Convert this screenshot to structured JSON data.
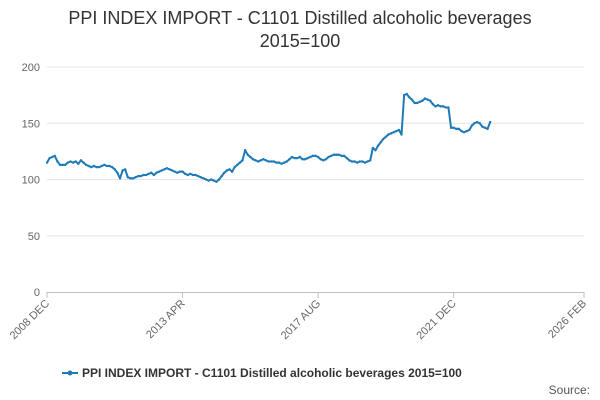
{
  "chart_data": {
    "type": "line",
    "title": "PPI INDEX IMPORT - C1101 Distilled alcoholic beverages",
    "subtitle": "2015=100",
    "ylim": [
      0,
      200
    ],
    "y_ticks": [
      "0",
      "50",
      "100",
      "150",
      "200"
    ],
    "x_tick_labels": [
      "2008 DEC",
      "2013 APR",
      "2017 AUG",
      "2021 DEC",
      "2026 FEB"
    ],
    "grid": true,
    "legend_position": "bottom",
    "series": [
      {
        "name": "PPI INDEX IMPORT - C1101 Distilled alcoholic beverages 2015=100",
        "color": "#1f7ab8",
        "points": [
          [
            "2008-12",
            115
          ],
          [
            "2009-01",
            119
          ],
          [
            "2009-02",
            120
          ],
          [
            "2009-03",
            121
          ],
          [
            "2009-04",
            116
          ],
          [
            "2009-05",
            113
          ],
          [
            "2009-06",
            113
          ],
          [
            "2009-07",
            113
          ],
          [
            "2009-08",
            115
          ],
          [
            "2009-09",
            116
          ],
          [
            "2009-10",
            115
          ],
          [
            "2009-11",
            116
          ],
          [
            "2009-12",
            114
          ],
          [
            "2010-01",
            117
          ],
          [
            "2010-02",
            115
          ],
          [
            "2010-03",
            113
          ],
          [
            "2010-04",
            112
          ],
          [
            "2010-05",
            111
          ],
          [
            "2010-06",
            112
          ],
          [
            "2010-07",
            111
          ],
          [
            "2010-08",
            111
          ],
          [
            "2010-09",
            112
          ],
          [
            "2010-10",
            113
          ],
          [
            "2010-11",
            112
          ],
          [
            "2010-12",
            112
          ],
          [
            "2011-01",
            111
          ],
          [
            "2011-02",
            109
          ],
          [
            "2011-03",
            106
          ],
          [
            "2011-04",
            101
          ],
          [
            "2011-05",
            108
          ],
          [
            "2011-06",
            109
          ],
          [
            "2011-07",
            102
          ],
          [
            "2011-08",
            101
          ],
          [
            "2011-09",
            101
          ],
          [
            "2011-10",
            102
          ],
          [
            "2011-11",
            103
          ],
          [
            "2011-12",
            103
          ],
          [
            "2012-01",
            104
          ],
          [
            "2012-02",
            104
          ],
          [
            "2012-03",
            105
          ],
          [
            "2012-04",
            106
          ],
          [
            "2012-05",
            104
          ],
          [
            "2012-06",
            106
          ],
          [
            "2012-07",
            107
          ],
          [
            "2012-08",
            108
          ],
          [
            "2012-09",
            109
          ],
          [
            "2012-10",
            110
          ],
          [
            "2012-11",
            109
          ],
          [
            "2012-12",
            108
          ],
          [
            "2013-01",
            107
          ],
          [
            "2013-02",
            106
          ],
          [
            "2013-03",
            107
          ],
          [
            "2013-04",
            107
          ],
          [
            "2013-05",
            105
          ],
          [
            "2013-06",
            104
          ],
          [
            "2013-07",
            105
          ],
          [
            "2013-08",
            104
          ],
          [
            "2013-09",
            104
          ],
          [
            "2013-10",
            103
          ],
          [
            "2013-11",
            102
          ],
          [
            "2013-12",
            101
          ],
          [
            "2014-01",
            100
          ],
          [
            "2014-02",
            99
          ],
          [
            "2014-03",
            100
          ],
          [
            "2014-04",
            99
          ],
          [
            "2014-05",
            98
          ],
          [
            "2014-06",
            100
          ],
          [
            "2014-07",
            103
          ],
          [
            "2014-08",
            106
          ],
          [
            "2014-09",
            108
          ],
          [
            "2014-10",
            109
          ],
          [
            "2014-11",
            107
          ],
          [
            "2014-12",
            111
          ],
          [
            "2015-01",
            113
          ],
          [
            "2015-02",
            115
          ],
          [
            "2015-03",
            117
          ],
          [
            "2015-04",
            126
          ],
          [
            "2015-05",
            122
          ],
          [
            "2015-06",
            120
          ],
          [
            "2015-07",
            118
          ],
          [
            "2015-08",
            117
          ],
          [
            "2015-09",
            116
          ],
          [
            "2015-10",
            117
          ],
          [
            "2015-11",
            118
          ],
          [
            "2015-12",
            117
          ],
          [
            "2016-01",
            116
          ],
          [
            "2016-02",
            116
          ],
          [
            "2016-03",
            116
          ],
          [
            "2016-04",
            115
          ],
          [
            "2016-05",
            115
          ],
          [
            "2016-06",
            114
          ],
          [
            "2016-07",
            115
          ],
          [
            "2016-08",
            116
          ],
          [
            "2016-09",
            118
          ],
          [
            "2016-10",
            120
          ],
          [
            "2016-11",
            119
          ],
          [
            "2016-12",
            119
          ],
          [
            "2017-01",
            120
          ],
          [
            "2017-02",
            118
          ],
          [
            "2017-03",
            118
          ],
          [
            "2017-04",
            119
          ],
          [
            "2017-05",
            120
          ],
          [
            "2017-06",
            121
          ],
          [
            "2017-07",
            121
          ],
          [
            "2017-08",
            120
          ],
          [
            "2017-09",
            118
          ],
          [
            "2017-10",
            117
          ],
          [
            "2017-11",
            118
          ],
          [
            "2017-12",
            120
          ],
          [
            "2018-01",
            121
          ],
          [
            "2018-02",
            122
          ],
          [
            "2018-03",
            122
          ],
          [
            "2018-04",
            122
          ],
          [
            "2018-05",
            121
          ],
          [
            "2018-06",
            121
          ],
          [
            "2018-07",
            119
          ],
          [
            "2018-08",
            117
          ],
          [
            "2018-09",
            116
          ],
          [
            "2018-10",
            116
          ],
          [
            "2018-11",
            115
          ],
          [
            "2018-12",
            116
          ],
          [
            "2019-01",
            116
          ],
          [
            "2019-02",
            115
          ],
          [
            "2019-03",
            116
          ],
          [
            "2019-04",
            117
          ],
          [
            "2019-05",
            128
          ],
          [
            "2019-06",
            126
          ],
          [
            "2019-07",
            130
          ],
          [
            "2019-08",
            133
          ],
          [
            "2019-09",
            136
          ],
          [
            "2019-10",
            138
          ],
          [
            "2019-11",
            140
          ],
          [
            "2019-12",
            141
          ],
          [
            "2020-01",
            142
          ],
          [
            "2020-02",
            143
          ],
          [
            "2020-03",
            144
          ],
          [
            "2020-04",
            140
          ],
          [
            "2020-05",
            175
          ],
          [
            "2020-06",
            176
          ],
          [
            "2020-07",
            173
          ],
          [
            "2020-08",
            171
          ],
          [
            "2020-09",
            168
          ],
          [
            "2020-10",
            168
          ],
          [
            "2020-11",
            169
          ],
          [
            "2020-12",
            170
          ],
          [
            "2021-01",
            172
          ],
          [
            "2021-02",
            171
          ],
          [
            "2021-03",
            170
          ],
          [
            "2021-04",
            167
          ],
          [
            "2021-05",
            165
          ],
          [
            "2021-06",
            166
          ],
          [
            "2021-07",
            165
          ],
          [
            "2021-08",
            165
          ],
          [
            "2021-09",
            164
          ],
          [
            "2021-10",
            164
          ],
          [
            "2021-11",
            146
          ],
          [
            "2021-12",
            146
          ],
          [
            "2022-01",
            145
          ],
          [
            "2022-02",
            145
          ],
          [
            "2022-03",
            143
          ],
          [
            "2022-04",
            142
          ],
          [
            "2022-05",
            143
          ],
          [
            "2022-06",
            144
          ],
          [
            "2022-07",
            148
          ],
          [
            "2022-08",
            150
          ],
          [
            "2022-09",
            151
          ],
          [
            "2022-10",
            150
          ],
          [
            "2022-11",
            147
          ],
          [
            "2022-12",
            146
          ],
          [
            "2023-01",
            145
          ],
          [
            "2023-02",
            151
          ]
        ]
      }
    ]
  },
  "source_label": "Source:"
}
